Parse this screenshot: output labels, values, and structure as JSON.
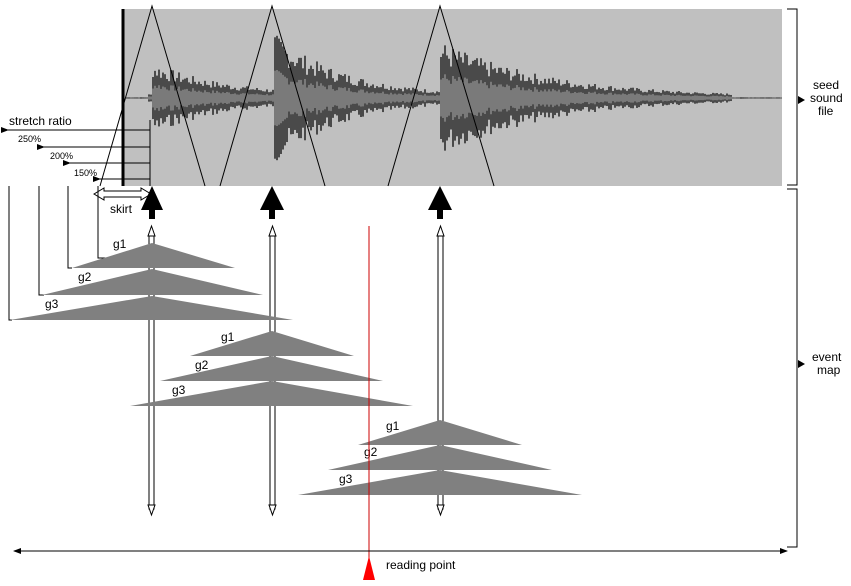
{
  "labels": {
    "stretch_ratio": "stretch ratio",
    "ratio_250": "250%",
    "ratio_200": "200%",
    "ratio_150": "150%",
    "skirt": "skirt",
    "seed_line1": "seed",
    "seed_line2": "sound",
    "seed_line3": "file",
    "event_line1": "event",
    "event_line2": "map",
    "reading_point": "reading point"
  },
  "groups": [
    {
      "g1": "g1",
      "g2": "g2",
      "g3": "g3"
    },
    {
      "g1": "g1",
      "g2": "g2",
      "g3": "g3"
    },
    {
      "g1": "g1",
      "g2": "g2",
      "g3": "g3"
    }
  ],
  "colors": {
    "waveform_bg": "#c0c0c0",
    "waveform_dark": "#4a4a4a",
    "waveform_mid": "#7a7a7a",
    "grain_fill": "#808080",
    "reading_line": "#cc0000",
    "reading_marker": "#ff0000"
  }
}
